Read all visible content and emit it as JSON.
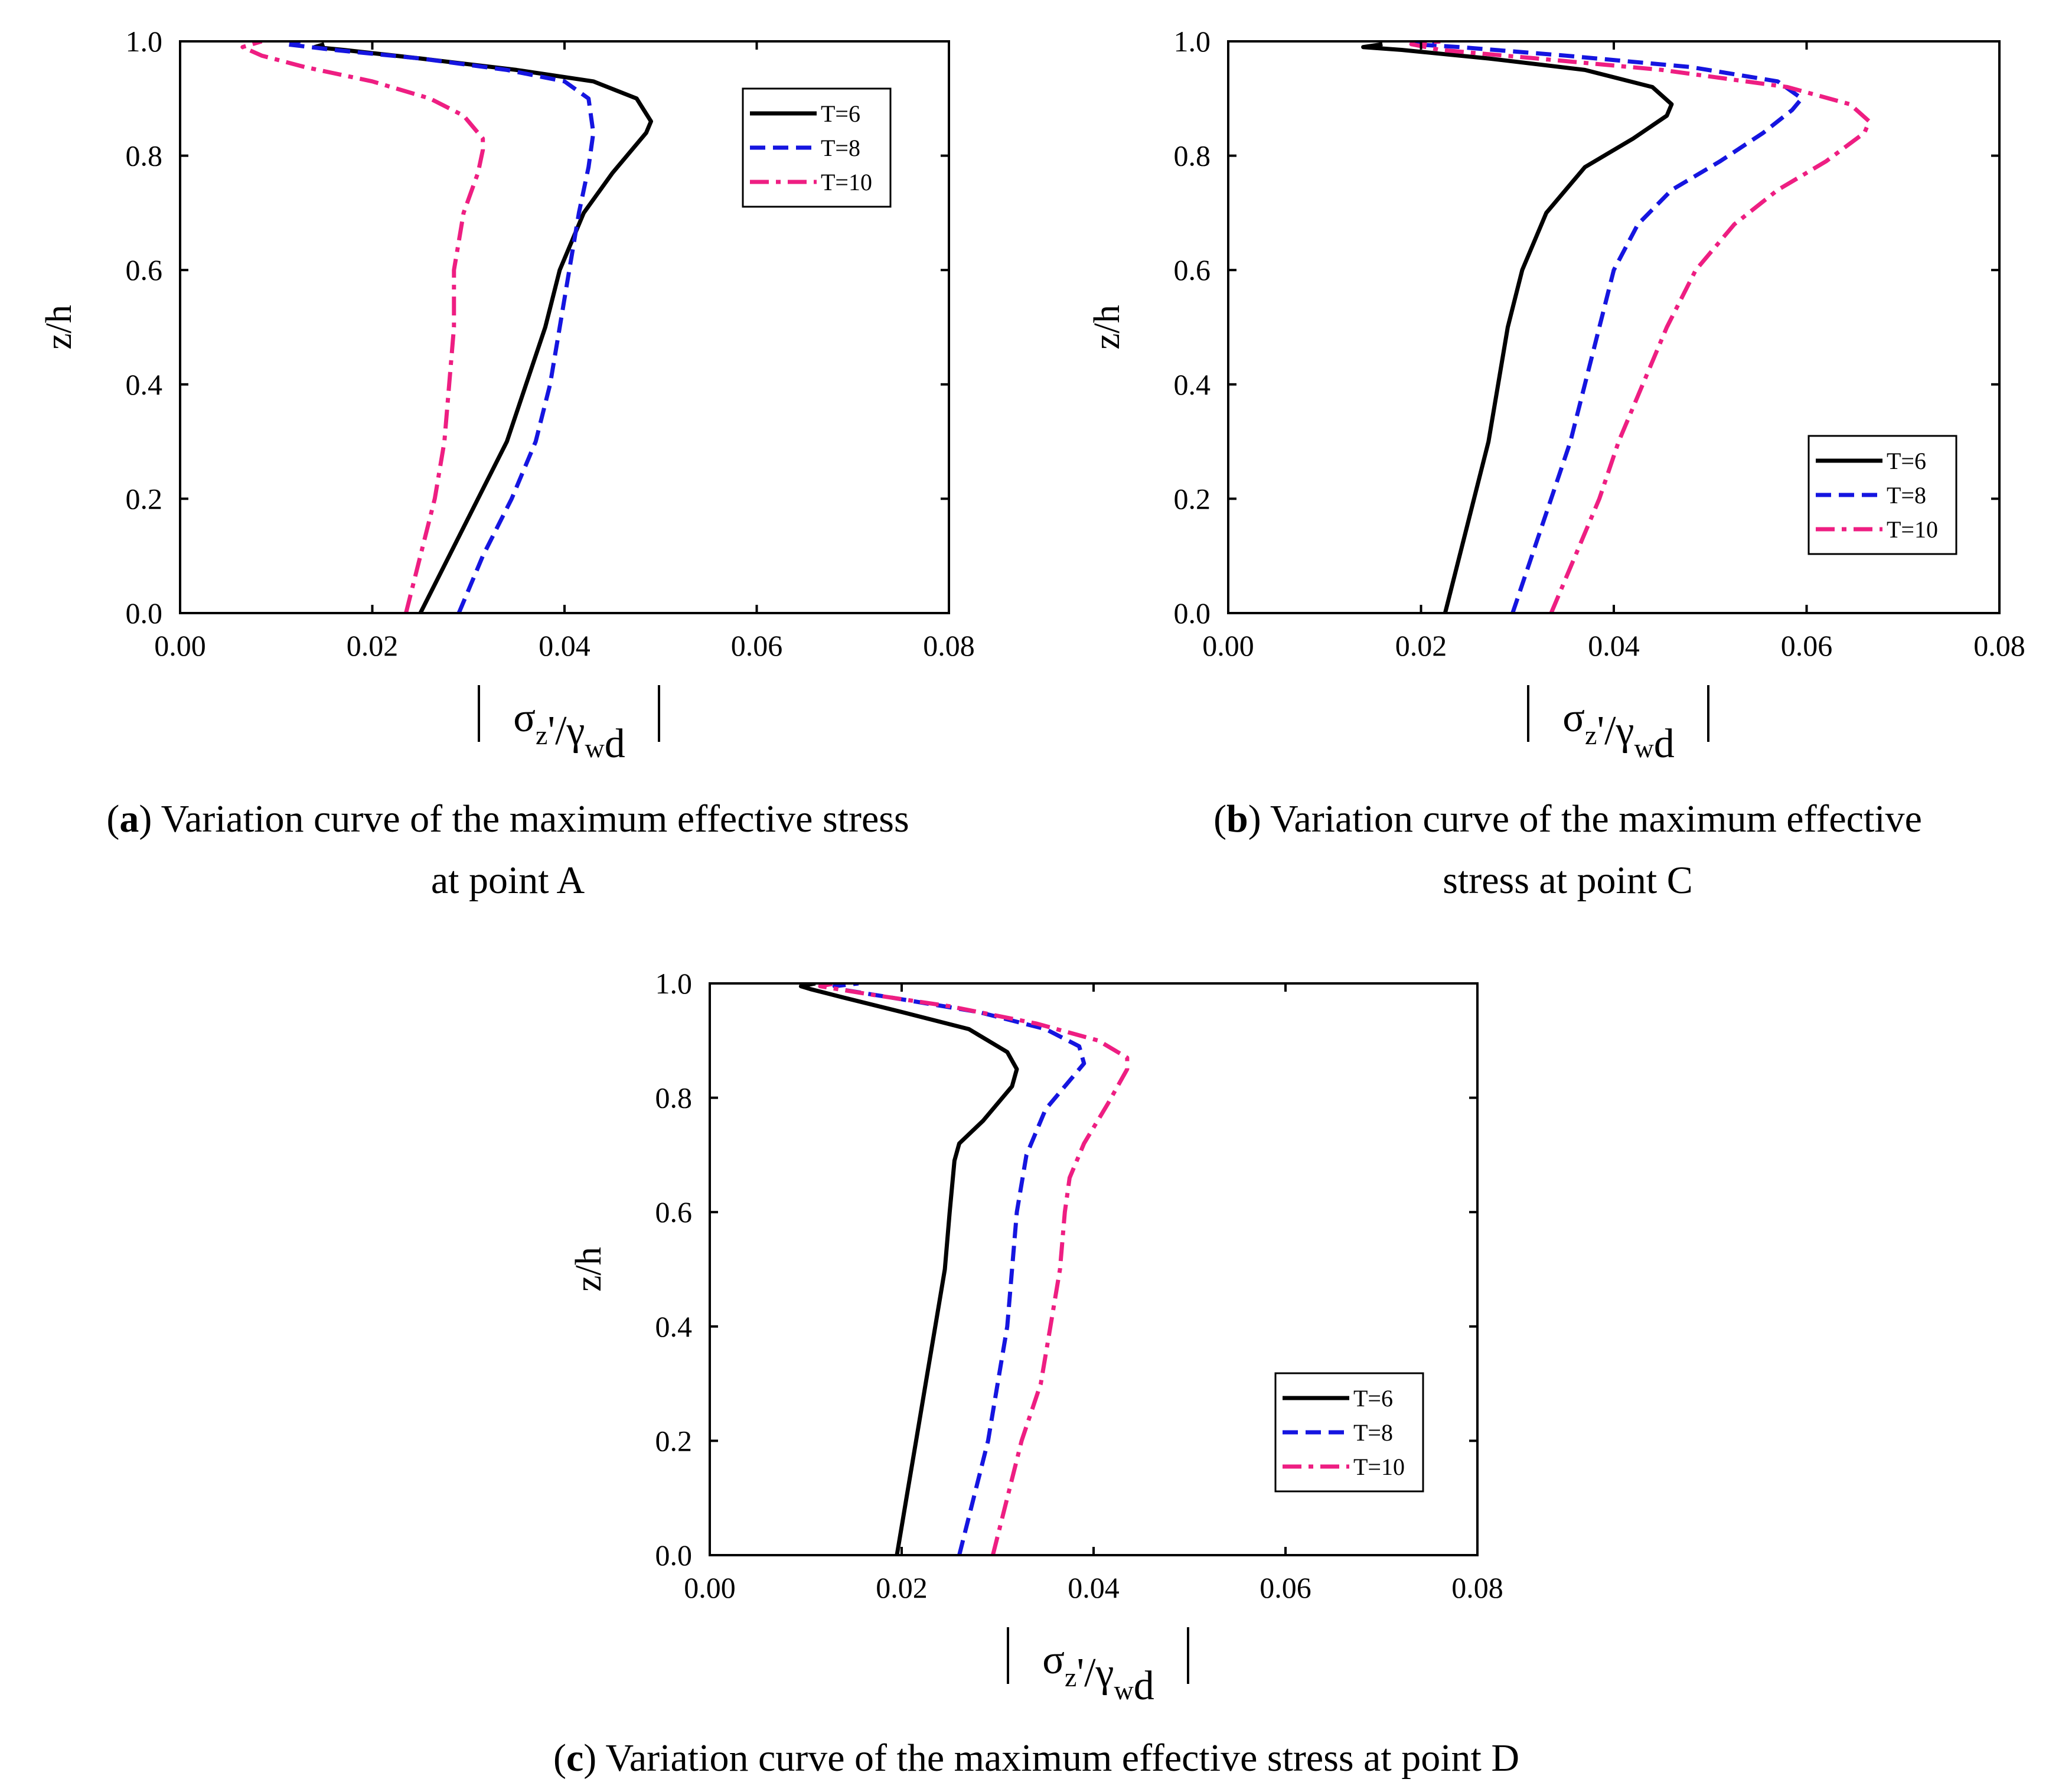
{
  "figure": {
    "captions": [
      {
        "letter": "a",
        "line1": " Variation curve of the maximum effective stress",
        "line2": "at point A"
      },
      {
        "letter": "b",
        "line1": " Variation curve of the maximum effective",
        "line2": "stress at point C"
      },
      {
        "letter": "c",
        "line1": " Variation curve of the maximum effective stress at point D",
        "line2": ""
      }
    ]
  },
  "chart_data": [
    {
      "id": "a",
      "type": "line",
      "title": "",
      "xlabel": "|σz'/γwd|",
      "ylabel": "z/h",
      "xlim": [
        0,
        0.08
      ],
      "ylim": [
        0,
        1.0
      ],
      "xticks": [
        "0.00",
        "0.02",
        "0.04",
        "0.06",
        "0.08"
      ],
      "yticks": [
        "0.0",
        "0.2",
        "0.4",
        "0.6",
        "0.8",
        "1.0"
      ],
      "legend_position": "top-right",
      "series": [
        {
          "name": "T=6",
          "color": "#000000",
          "dash": "solid",
          "points": [
            [
              0.025,
              0
            ],
            [
              0.028,
              0.1
            ],
            [
              0.031,
              0.2
            ],
            [
              0.034,
              0.3
            ],
            [
              0.036,
              0.4
            ],
            [
              0.038,
              0.5
            ],
            [
              0.0395,
              0.6
            ],
            [
              0.042,
              0.7
            ],
            [
              0.045,
              0.77
            ],
            [
              0.0485,
              0.84
            ],
            [
              0.049,
              0.86
            ],
            [
              0.0475,
              0.9
            ],
            [
              0.043,
              0.93
            ],
            [
              0.035,
              0.95
            ],
            [
              0.025,
              0.97
            ],
            [
              0.017,
              0.985
            ],
            [
              0.014,
              0.99
            ],
            [
              0.015,
              0.995
            ]
          ]
        },
        {
          "name": "T=8",
          "color": "#1515E0",
          "dash": "dash",
          "points": [
            [
              0.029,
              0
            ],
            [
              0.0315,
              0.1
            ],
            [
              0.0345,
              0.2
            ],
            [
              0.037,
              0.3
            ],
            [
              0.0385,
              0.4
            ],
            [
              0.0395,
              0.5
            ],
            [
              0.0405,
              0.6
            ],
            [
              0.0415,
              0.7
            ],
            [
              0.0425,
              0.78
            ],
            [
              0.043,
              0.84
            ],
            [
              0.0425,
              0.9
            ],
            [
              0.04,
              0.93
            ],
            [
              0.034,
              0.95
            ],
            [
              0.025,
              0.97
            ],
            [
              0.016,
              0.985
            ],
            [
              0.011,
              0.995
            ],
            [
              0.0125,
              1.0
            ]
          ]
        },
        {
          "name": "T=10",
          "color": "#EE1E82",
          "dash": "dashdot",
          "points": [
            [
              0.0235,
              0
            ],
            [
              0.025,
              0.1
            ],
            [
              0.0265,
              0.2
            ],
            [
              0.0275,
              0.3
            ],
            [
              0.028,
              0.4
            ],
            [
              0.0285,
              0.5
            ],
            [
              0.0285,
              0.6
            ],
            [
              0.029,
              0.65
            ],
            [
              0.0295,
              0.7
            ],
            [
              0.031,
              0.77
            ],
            [
              0.0315,
              0.81
            ],
            [
              0.0315,
              0.83
            ],
            [
              0.0295,
              0.87
            ],
            [
              0.026,
              0.9
            ],
            [
              0.02,
              0.93
            ],
            [
              0.013,
              0.955
            ],
            [
              0.0085,
              0.975
            ],
            [
              0.0065,
              0.99
            ],
            [
              0.0085,
              1.0
            ]
          ]
        }
      ]
    },
    {
      "id": "b",
      "type": "line",
      "title": "",
      "xlabel": "|σz'/γwd|",
      "ylabel": "z/h",
      "xlim": [
        0,
        0.08
      ],
      "ylim": [
        0,
        1.0
      ],
      "xticks": [
        "0.00",
        "0.02",
        "0.04",
        "0.06",
        "0.08"
      ],
      "yticks": [
        "0.0",
        "0.2",
        "0.4",
        "0.6",
        "0.8",
        "1.0"
      ],
      "legend_position": "middle-right",
      "series": [
        {
          "name": "T=6",
          "color": "#000000",
          "dash": "solid",
          "points": [
            [
              0.0225,
              0
            ],
            [
              0.024,
              0.1
            ],
            [
              0.0255,
              0.2
            ],
            [
              0.027,
              0.3
            ],
            [
              0.028,
              0.4
            ],
            [
              0.029,
              0.5
            ],
            [
              0.0305,
              0.6
            ],
            [
              0.033,
              0.7
            ],
            [
              0.037,
              0.78
            ],
            [
              0.042,
              0.83
            ],
            [
              0.0455,
              0.87
            ],
            [
              0.046,
              0.89
            ],
            [
              0.044,
              0.92
            ],
            [
              0.037,
              0.95
            ],
            [
              0.027,
              0.97
            ],
            [
              0.018,
              0.985
            ],
            [
              0.014,
              0.99
            ],
            [
              0.016,
              0.995
            ]
          ]
        },
        {
          "name": "T=8",
          "color": "#1515E0",
          "dash": "dash",
          "points": [
            [
              0.0295,
              0
            ],
            [
              0.0315,
              0.1
            ],
            [
              0.0335,
              0.2
            ],
            [
              0.0355,
              0.3
            ],
            [
              0.037,
              0.4
            ],
            [
              0.0385,
              0.5
            ],
            [
              0.04,
              0.6
            ],
            [
              0.0425,
              0.68
            ],
            [
              0.046,
              0.74
            ],
            [
              0.051,
              0.79
            ],
            [
              0.0555,
              0.84
            ],
            [
              0.0585,
              0.88
            ],
            [
              0.0595,
              0.9
            ],
            [
              0.057,
              0.93
            ],
            [
              0.048,
              0.955
            ],
            [
              0.035,
              0.975
            ],
            [
              0.024,
              0.99
            ],
            [
              0.019,
              0.995
            ],
            [
              0.022,
              1.0
            ]
          ]
        },
        {
          "name": "T=10",
          "color": "#EE1E82",
          "dash": "dashdot",
          "points": [
            [
              0.0335,
              0
            ],
            [
              0.036,
              0.1
            ],
            [
              0.0385,
              0.2
            ],
            [
              0.0405,
              0.3
            ],
            [
              0.043,
              0.4
            ],
            [
              0.0455,
              0.5
            ],
            [
              0.0485,
              0.6
            ],
            [
              0.0525,
              0.68
            ],
            [
              0.057,
              0.74
            ],
            [
              0.062,
              0.79
            ],
            [
              0.066,
              0.84
            ],
            [
              0.0665,
              0.86
            ],
            [
              0.0645,
              0.89
            ],
            [
              0.058,
              0.92
            ],
            [
              0.045,
              0.95
            ],
            [
              0.032,
              0.97
            ],
            [
              0.022,
              0.985
            ],
            [
              0.019,
              0.995
            ],
            [
              0.022,
              1.0
            ]
          ]
        }
      ]
    },
    {
      "id": "c",
      "type": "line",
      "title": "",
      "xlabel": "|σz'/γwd|",
      "ylabel": "z/h",
      "xlim": [
        0,
        0.08
      ],
      "ylim": [
        0,
        1.0
      ],
      "xticks": [
        "0.00",
        "0.02",
        "0.04",
        "0.06",
        "0.08"
      ],
      "yticks": [
        "0.0",
        "0.2",
        "0.4",
        "0.6",
        "0.8",
        "1.0"
      ],
      "legend_position": "middle-right",
      "series": [
        {
          "name": "T=6",
          "color": "#000000",
          "dash": "solid",
          "points": [
            [
              0.0195,
              0
            ],
            [
              0.0205,
              0.1
            ],
            [
              0.0215,
              0.2
            ],
            [
              0.0225,
              0.3
            ],
            [
              0.0235,
              0.4
            ],
            [
              0.0245,
              0.5
            ],
            [
              0.025,
              0.6
            ],
            [
              0.0255,
              0.69
            ],
            [
              0.026,
              0.72
            ],
            [
              0.0285,
              0.76
            ],
            [
              0.0315,
              0.82
            ],
            [
              0.032,
              0.85
            ],
            [
              0.031,
              0.88
            ],
            [
              0.027,
              0.92
            ],
            [
              0.02,
              0.95
            ],
            [
              0.014,
              0.975
            ],
            [
              0.0105,
              0.99
            ],
            [
              0.0095,
              0.995
            ],
            [
              0.011,
              1.0
            ]
          ]
        },
        {
          "name": "T=8",
          "color": "#1515E0",
          "dash": "dash",
          "points": [
            [
              0.026,
              0
            ],
            [
              0.0275,
              0.1
            ],
            [
              0.029,
              0.2
            ],
            [
              0.03,
              0.3
            ],
            [
              0.031,
              0.4
            ],
            [
              0.0315,
              0.5
            ],
            [
              0.032,
              0.6
            ],
            [
              0.033,
              0.7
            ],
            [
              0.035,
              0.78
            ],
            [
              0.0375,
              0.83
            ],
            [
              0.039,
              0.86
            ],
            [
              0.0385,
              0.89
            ],
            [
              0.035,
              0.92
            ],
            [
              0.028,
              0.95
            ],
            [
              0.019,
              0.975
            ],
            [
              0.0135,
              0.99
            ],
            [
              0.013,
              0.995
            ],
            [
              0.0155,
              1.0
            ]
          ]
        },
        {
          "name": "T=10",
          "color": "#EE1E82",
          "dash": "dashdot",
          "points": [
            [
              0.0295,
              0
            ],
            [
              0.031,
              0.1
            ],
            [
              0.0325,
              0.2
            ],
            [
              0.0345,
              0.3
            ],
            [
              0.0355,
              0.4
            ],
            [
              0.0365,
              0.5
            ],
            [
              0.037,
              0.6
            ],
            [
              0.0375,
              0.66
            ],
            [
              0.039,
              0.72
            ],
            [
              0.0415,
              0.79
            ],
            [
              0.0435,
              0.85
            ],
            [
              0.0435,
              0.87
            ],
            [
              0.0405,
              0.9
            ],
            [
              0.034,
              0.93
            ],
            [
              0.025,
              0.96
            ],
            [
              0.017,
              0.98
            ],
            [
              0.0115,
              0.995
            ],
            [
              0.013,
              1.0
            ]
          ]
        }
      ]
    }
  ]
}
